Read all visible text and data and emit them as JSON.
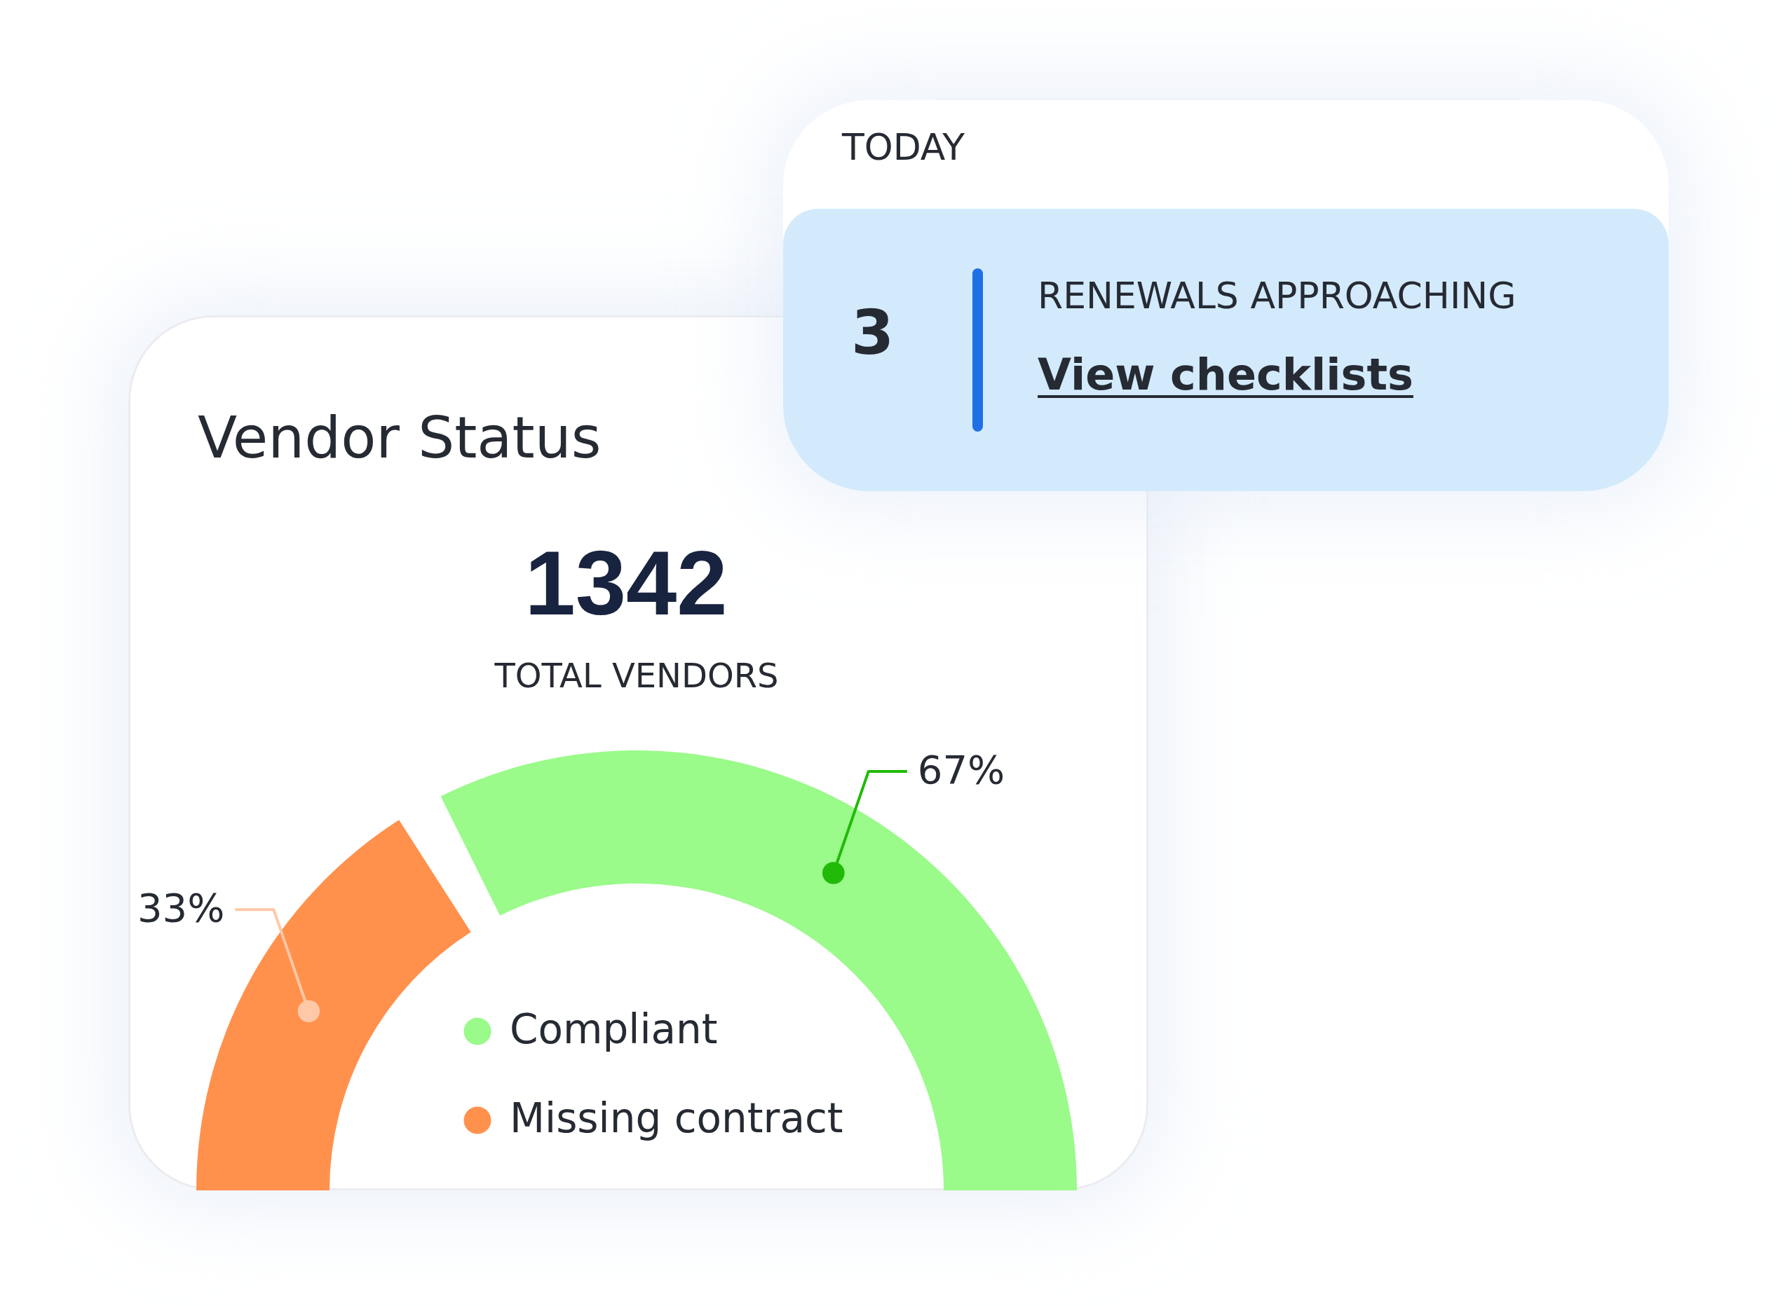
{
  "chart_data": [
    {
      "type": "donut",
      "title": "Vendor Status",
      "annotations": [
        "1342",
        "TOTAL VENDORS"
      ],
      "categories": [
        "Compliant",
        "Missing contract"
      ],
      "values": [
        67,
        33
      ],
      "colors": [
        "#9afa8a",
        "#ff914d"
      ],
      "value_labels": [
        "67%",
        "33%"
      ],
      "legend": "bottom"
    },
    {
      "type": "other",
      "title": "TODAY",
      "annotations": [
        "3",
        "RENEWALS APPROACHING",
        "View checklists"
      ]
    }
  ]
}
